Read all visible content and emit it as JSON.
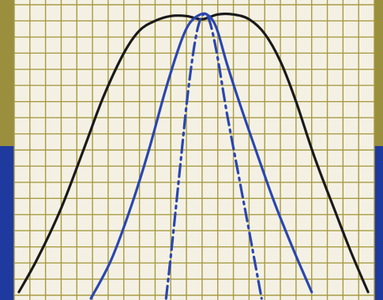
{
  "colors": {
    "frame_olive": "#9a8f3c",
    "frame_blue": "#1f3a9e",
    "paper": "#f4f1e4",
    "grid": "#a89a42",
    "wide_curve": "#1a1a1a",
    "narrow_curves": "#2a46b0"
  },
  "chart_data": {
    "type": "line",
    "grid": true,
    "grid_divisions": {
      "x": 23,
      "y": 18
    },
    "xlim": [
      0,
      23
    ],
    "ylim": [
      0,
      18
    ],
    "series": [
      {
        "style": "solid",
        "color": "#1a1a1a",
        "points": [
          [
            0.3,
            0.2
          ],
          [
            1.5,
            2.3
          ],
          [
            3,
            5.4
          ],
          [
            4.5,
            9.2
          ],
          [
            5.7,
            12.3
          ],
          [
            7,
            15
          ],
          [
            8,
            16.4
          ],
          [
            9,
            17
          ],
          [
            10,
            17.3
          ],
          [
            11,
            17.3
          ],
          [
            12,
            17.1
          ],
          [
            13,
            17.4
          ],
          [
            14,
            17.4
          ],
          [
            15,
            17.1
          ],
          [
            16,
            16.2
          ],
          [
            17,
            14.5
          ],
          [
            18,
            12
          ],
          [
            19.2,
            8.5
          ],
          [
            20.5,
            5.2
          ],
          [
            21.5,
            2.7
          ],
          [
            22.6,
            0.2
          ]
        ]
      },
      {
        "style": "solid",
        "color": "#2a46b0",
        "points": [
          [
            4.9,
            -0.2
          ],
          [
            6.2,
            2.2
          ],
          [
            7.5,
            5.6
          ],
          [
            8.6,
            9
          ],
          [
            9.6,
            12.5
          ],
          [
            10.5,
            15.3
          ],
          [
            11.1,
            16.7
          ],
          [
            11.7,
            17.3
          ],
          [
            12.3,
            17.4
          ],
          [
            12.9,
            16.6
          ],
          [
            13.6,
            14.3
          ],
          [
            14.5,
            11.6
          ],
          [
            15.5,
            8.8
          ],
          [
            16.6,
            5.8
          ],
          [
            17.8,
            2.9
          ],
          [
            19,
            0.2
          ]
        ]
      },
      {
        "style": "dash-dot",
        "color": "#2a46b0",
        "points": [
          [
            9.7,
            -0.2
          ],
          [
            10.1,
            3.3
          ],
          [
            10.6,
            8
          ],
          [
            11.1,
            12.6
          ],
          [
            11.6,
            16
          ],
          [
            12,
            17.3
          ],
          [
            12.4,
            17.2
          ],
          [
            12.9,
            15.2
          ],
          [
            13.6,
            11.2
          ],
          [
            14.3,
            7.6
          ],
          [
            15,
            4
          ],
          [
            15.8,
            -0.2
          ]
        ]
      }
    ]
  }
}
